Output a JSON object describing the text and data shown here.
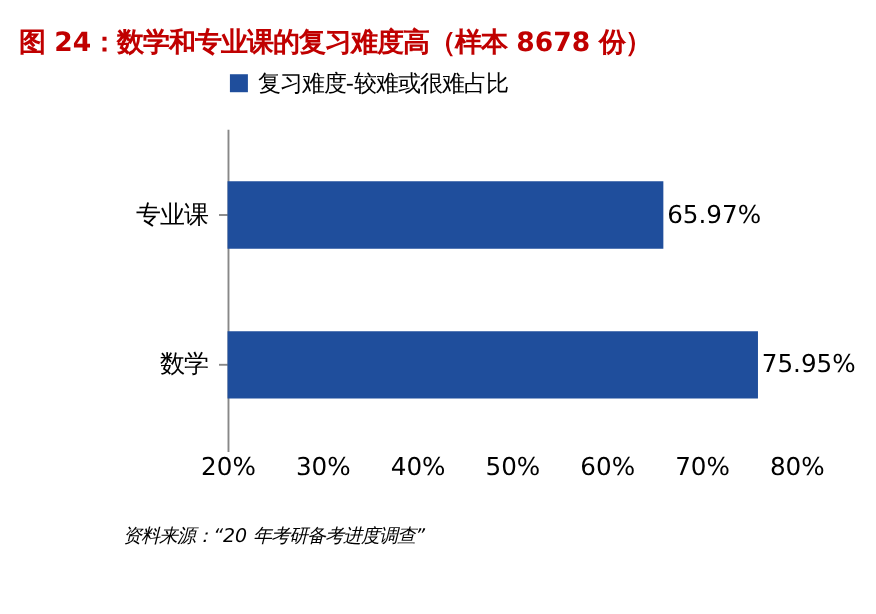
{
  "chart_data": {
    "type": "bar",
    "orientation": "horizontal",
    "title": "图 24：数学和专业课的复习难度高（样本 8678 份）",
    "categories": [
      "专业课",
      "数学"
    ],
    "series": [
      {
        "name": "复习难度-较难或很难占比",
        "color": "#1f4e9c",
        "values": [
          65.97,
          75.95
        ],
        "value_labels": [
          "65.97%",
          "75.95%"
        ]
      }
    ],
    "xlim": [
      20,
      80
    ],
    "xticks": [
      {
        "value": 20,
        "label": "20%"
      },
      {
        "value": 30,
        "label": "30%"
      },
      {
        "value": 40,
        "label": "40%"
      },
      {
        "value": 50,
        "label": "50%"
      },
      {
        "value": 60,
        "label": "60%"
      },
      {
        "value": 70,
        "label": "70%"
      },
      {
        "value": 80,
        "label": "80%"
      }
    ],
    "grid": false,
    "legend": "top",
    "annotations": [
      "资料来源：“20 年考研备考进度调查”"
    ]
  }
}
